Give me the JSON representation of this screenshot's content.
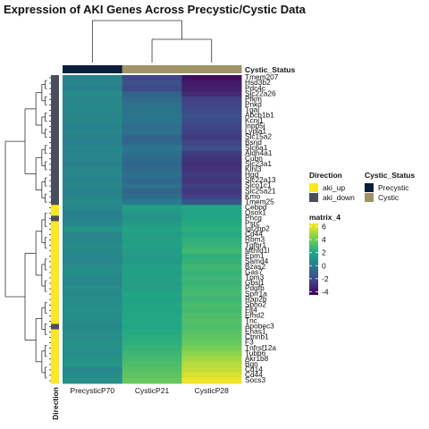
{
  "title": "Expression of AKI Genes Across Precystic/Cystic Data",
  "chart_data": {
    "type": "heatmap",
    "title": "Expression of AKI Genes Across Precystic/Cystic Data",
    "columns": [
      "PrecysticP70",
      "CysticP21",
      "CysticP28"
    ],
    "column_status": [
      "Precystic",
      "Cystic",
      "Cystic"
    ],
    "column_annotation_label": "Cystic_Status",
    "row_annotation_label": "Direction",
    "rows": [
      {
        "gene": "Tmem207",
        "direction": "aki_down",
        "values": [
          0.4,
          -2.2,
          -4.0
        ]
      },
      {
        "gene": "Hsd3b2",
        "direction": "aki_down",
        "values": [
          0.6,
          -1.8,
          -3.6
        ]
      },
      {
        "gene": "Pdc4c",
        "direction": "aki_down",
        "values": [
          0.3,
          -2.0,
          -3.5
        ]
      },
      {
        "gene": "Slc22a26",
        "direction": "aki_down",
        "values": [
          0.8,
          -1.0,
          -3.2
        ]
      },
      {
        "gene": "Pfkm",
        "direction": "aki_down",
        "values": [
          0.5,
          -0.6,
          -2.4
        ]
      },
      {
        "gene": "Pnkd",
        "direction": "aki_down",
        "values": [
          0.6,
          -0.4,
          -2.2
        ]
      },
      {
        "gene": "Tgal",
        "direction": "aki_down",
        "values": [
          0.7,
          -0.3,
          -2.0
        ]
      },
      {
        "gene": "Abcb1b1",
        "direction": "aki_down",
        "values": [
          0.5,
          -0.2,
          -1.8
        ]
      },
      {
        "gene": "Kcnj1",
        "direction": "aki_down",
        "values": [
          0.6,
          -0.3,
          -2.0
        ]
      },
      {
        "gene": "Inpp5j",
        "direction": "aki_down",
        "values": [
          0.4,
          -0.5,
          -2.2
        ]
      },
      {
        "gene": "Lypla1",
        "direction": "aki_down",
        "values": [
          0.5,
          -0.4,
          -2.4
        ]
      },
      {
        "gene": "Slc15a2",
        "direction": "aki_down",
        "values": [
          0.3,
          -1.0,
          -2.6
        ]
      },
      {
        "gene": "Bsnd",
        "direction": "aki_down",
        "values": [
          0.2,
          -0.8,
          -2.2
        ]
      },
      {
        "gene": "Slc6a1",
        "direction": "aki_down",
        "values": [
          0.6,
          -0.2,
          -1.8
        ]
      },
      {
        "gene": "Aldh4a1",
        "direction": "aki_down",
        "values": [
          0.4,
          -0.5,
          -2.6
        ]
      },
      {
        "gene": "Cubn",
        "direction": "aki_down",
        "values": [
          0.5,
          -0.7,
          -2.8
        ]
      },
      {
        "gene": "Slc23a1",
        "direction": "aki_down",
        "values": [
          0.3,
          -0.9,
          -3.0
        ]
      },
      {
        "gene": "Klhl3",
        "direction": "aki_down",
        "values": [
          0.5,
          -0.6,
          -2.8
        ]
      },
      {
        "gene": "Hgd",
        "direction": "aki_down",
        "values": [
          0.6,
          -0.5,
          -2.6
        ]
      },
      {
        "gene": "Slc22a13",
        "direction": "aki_down",
        "values": [
          0.4,
          -0.8,
          -2.8
        ]
      },
      {
        "gene": "Slco1c1",
        "direction": "aki_down",
        "values": [
          0.6,
          -0.4,
          -2.5
        ]
      },
      {
        "gene": "Slc25a21",
        "direction": "aki_down",
        "values": [
          0.3,
          -1.0,
          -2.7
        ]
      },
      {
        "gene": "Kmo",
        "direction": "aki_down",
        "values": [
          0.5,
          -0.6,
          -2.4
        ]
      },
      {
        "gene": "Tmem25",
        "direction": "aki_down",
        "values": [
          0.8,
          0.0,
          -1.6
        ]
      },
      {
        "gene": "Cebpd",
        "direction": "aki_up",
        "values": [
          0.6,
          1.6,
          2.0
        ]
      },
      {
        "gene": "Osox1",
        "direction": "aki_up",
        "values": [
          0.2,
          1.4,
          1.9
        ]
      },
      {
        "gene": "Phcg",
        "direction": "aki_down",
        "values": [
          0.4,
          1.2,
          2.0
        ]
      },
      {
        "gene": "Psrc",
        "direction": "aki_up",
        "values": [
          0.6,
          1.5,
          2.2
        ]
      },
      {
        "gene": "Igf2bp2",
        "direction": "aki_up",
        "values": [
          1.2,
          1.8,
          2.4
        ]
      },
      {
        "gene": "Cd44",
        "direction": "aki_up",
        "values": [
          0.5,
          1.6,
          2.2
        ]
      },
      {
        "gene": "Rbm3",
        "direction": "aki_up",
        "values": [
          0.6,
          1.7,
          2.5
        ]
      },
      {
        "gene": "Tgfbr1",
        "direction": "aki_up",
        "values": [
          0.8,
          1.8,
          2.6
        ]
      },
      {
        "gene": "Mthfd1l",
        "direction": "aki_up",
        "values": [
          0.7,
          1.6,
          2.9
        ]
      },
      {
        "gene": "Epm1",
        "direction": "aki_up",
        "values": [
          0.6,
          1.5,
          2.4
        ]
      },
      {
        "gene": "Samd4",
        "direction": "aki_up",
        "values": [
          0.5,
          1.4,
          2.6
        ]
      },
      {
        "gene": "Bzas2",
        "direction": "aki_up",
        "values": [
          0.8,
          1.8,
          2.9
        ]
      },
      {
        "gene": "Gas7",
        "direction": "aki_up",
        "values": [
          0.9,
          1.7,
          2.6
        ]
      },
      {
        "gene": "Tpm3",
        "direction": "aki_up",
        "values": [
          0.7,
          1.8,
          2.8
        ]
      },
      {
        "gene": "Gbsl1",
        "direction": "aki_up",
        "values": [
          0.6,
          1.6,
          2.7
        ]
      },
      {
        "gene": "Pdgfb",
        "direction": "aki_up",
        "values": [
          0.8,
          1.7,
          2.9
        ]
      },
      {
        "gene": "Sprr1a",
        "direction": "aki_up",
        "values": [
          0.7,
          1.9,
          3.0
        ]
      },
      {
        "gene": "Rap2b",
        "direction": "aki_up",
        "values": [
          0.8,
          1.8,
          2.8
        ]
      },
      {
        "gene": "Sbno2",
        "direction": "aki_up",
        "values": [
          0.9,
          2.0,
          3.1
        ]
      },
      {
        "gene": "Flt4",
        "direction": "aki_up",
        "values": [
          1.0,
          1.9,
          3.0
        ]
      },
      {
        "gene": "Efhd2",
        "direction": "aki_up",
        "values": [
          0.9,
          2.0,
          3.2
        ]
      },
      {
        "gene": "Tnc",
        "direction": "aki_up",
        "values": [
          0.8,
          2.1,
          3.3
        ]
      },
      {
        "gene": "Apobec3",
        "direction": "aki_down",
        "values": [
          0.7,
          2.0,
          3.2
        ]
      },
      {
        "gene": "Ehas1",
        "direction": "aki_up",
        "values": [
          0.9,
          2.2,
          3.4
        ]
      },
      {
        "gene": "Ctnnb1",
        "direction": "aki_up",
        "values": [
          0.8,
          2.3,
          3.6
        ]
      },
      {
        "gene": "F3",
        "direction": "aki_up",
        "values": [
          1.0,
          2.4,
          3.8
        ]
      },
      {
        "gene": "Tnfrsf12a",
        "direction": "aki_up",
        "values": [
          1.0,
          2.6,
          4.2
        ]
      },
      {
        "gene": "Tubb6",
        "direction": "aki_up",
        "values": [
          0.9,
          2.8,
          4.6
        ]
      },
      {
        "gene": "Akr1b8",
        "direction": "aki_up",
        "values": [
          1.1,
          3.0,
          5.0
        ]
      },
      {
        "gene": "Bgn",
        "direction": "aki_up",
        "values": [
          1.2,
          3.2,
          5.3
        ]
      },
      {
        "gene": "Cd14",
        "direction": "aki_up",
        "values": [
          0.6,
          3.4,
          5.6
        ]
      },
      {
        "gene": "Cd44",
        "direction": "aki_up",
        "values": [
          0.8,
          3.6,
          5.9
        ]
      },
      {
        "gene": "Socs3",
        "direction": "aki_up",
        "values": [
          1.0,
          3.8,
          6.3
        ]
      }
    ],
    "legend_direction": {
      "title": "Direction",
      "entries": [
        {
          "label": "aki_up",
          "color": "#fde725"
        },
        {
          "label": "aki_down",
          "color": "#4a4e5c"
        }
      ]
    },
    "legend_status": {
      "title": "Cystic_Status",
      "entries": [
        {
          "label": "Precystic",
          "color": "#0b1f3d"
        },
        {
          "label": "Cystic",
          "color": "#9e9468"
        }
      ]
    },
    "legend_matrix": {
      "title": "matrix_4",
      "ticks": [
        "6",
        "4",
        "2",
        "0",
        "-2",
        "-4"
      ],
      "range": [
        -4.5,
        6.5
      ]
    }
  }
}
